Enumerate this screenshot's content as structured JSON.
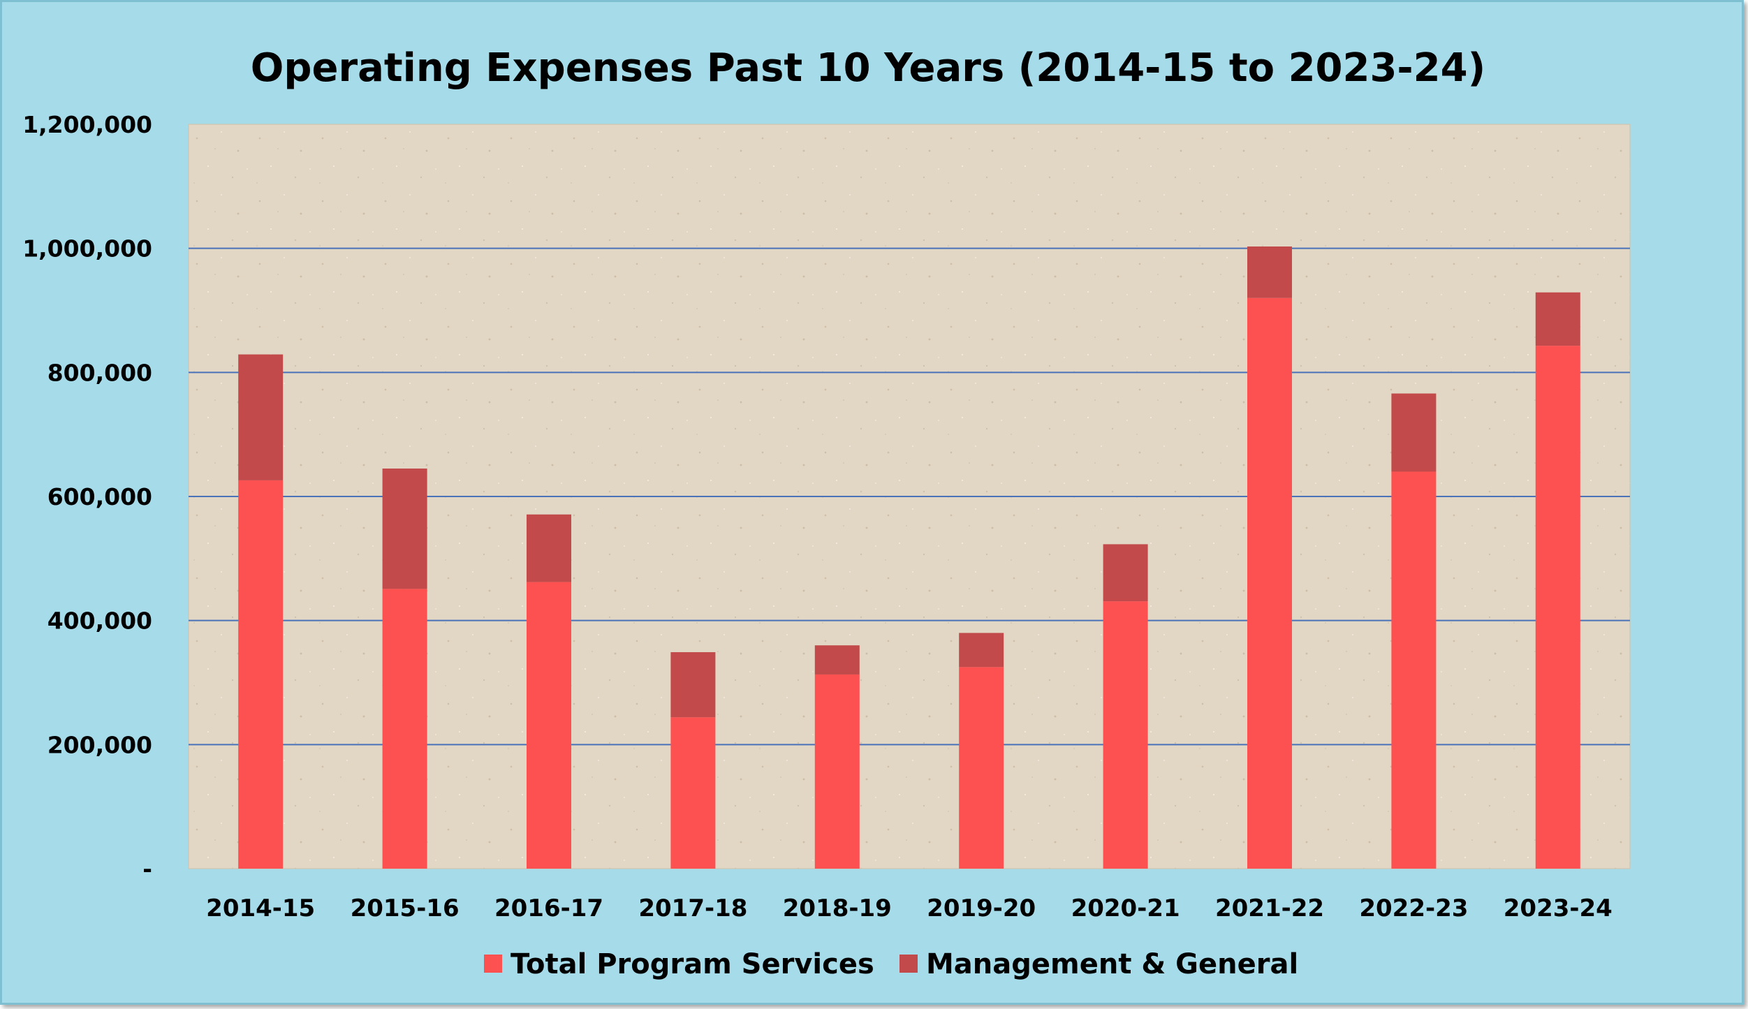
{
  "chart_data": {
    "type": "bar",
    "stacked": true,
    "title": "Operating Expenses Past 10 Years (2014-15 to 2023-24)",
    "xlabel": "",
    "ylabel": "",
    "ylim": [
      0,
      1200000
    ],
    "yticks": [
      0,
      200000,
      400000,
      600000,
      800000,
      1000000,
      1200000
    ],
    "ytick_labels": [
      "-",
      "200,000",
      "400,000",
      "600,000",
      "800,000",
      "1,000,000",
      "1,200,000"
    ],
    "grid": true,
    "legend_position": "bottom",
    "categories": [
      "2014-15",
      "2015-16",
      "2016-17",
      "2017-18",
      "2018-19",
      "2019-20",
      "2020-21",
      "2021-22",
      "2022-23",
      "2023-24"
    ],
    "series": [
      {
        "name": "Total Program Services",
        "color": "#fd5050",
        "values": [
          626000,
          451000,
          462000,
          244000,
          313000,
          325000,
          431000,
          920000,
          640000,
          843000
        ]
      },
      {
        "name": "Management & General",
        "color": "#c24a4a",
        "values": [
          203000,
          194000,
          109000,
          105000,
          47000,
          55000,
          92000,
          83000,
          126000,
          86000
        ]
      }
    ]
  },
  "colors": {
    "frame_background": "#a6dbe9",
    "plot_background": "#e2d6c4",
    "gridline": "#4a72b8"
  }
}
